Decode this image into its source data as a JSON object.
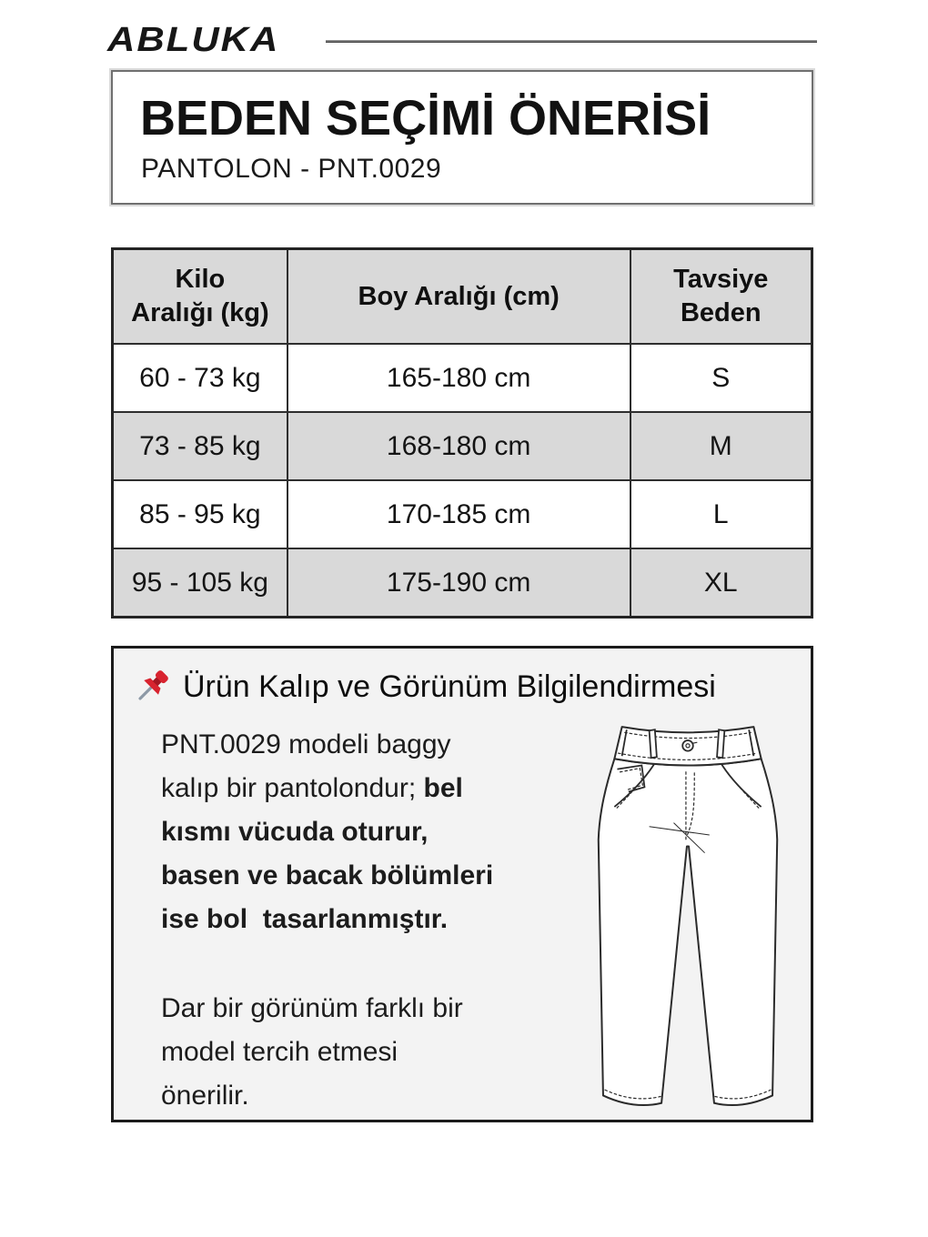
{
  "brand": {
    "logo_text": "ABLUKA"
  },
  "title_box": {
    "title": "BEDEN SEÇİMİ ÖNERİSİ",
    "subtitle": "PANTOLON - PNT.0029"
  },
  "size_table": {
    "headers": [
      {
        "lines": [
          "Kilo",
          "Aralığı (kg)"
        ]
      },
      {
        "lines": [
          "Boy Aralığı (cm)"
        ]
      },
      {
        "lines": [
          "Tavsiye",
          "Beden"
        ]
      }
    ],
    "rows": [
      [
        "60 - 73 kg",
        "165-180 cm",
        "S"
      ],
      [
        "73 - 85 kg",
        "168-180 cm",
        "M"
      ],
      [
        "85 - 95 kg",
        "170-185 cm",
        "L"
      ],
      [
        "95 - 105 kg",
        "175-190 cm",
        "XL"
      ]
    ]
  },
  "info_box": {
    "heading": "Ürün Kalıp ve Görünüm Bilgilendirmesi",
    "pin_icon": "pushpin-icon",
    "pants_drawing": "baggy-pants-technical-flat",
    "paragraph1_lines": [
      {
        "normal": "PNT.0029 modeli baggy",
        "bold": ""
      },
      {
        "normal": "kalıp bir pantolondur; ",
        "bold": "bel"
      },
      {
        "normal": "",
        "bold": "kısmı vücuda oturur,"
      },
      {
        "normal": "",
        "bold": "basen ve bacak bölümleri"
      },
      {
        "normal": "",
        "bold": "ise bol  tasarlanmıştır."
      }
    ],
    "paragraph2_lines": [
      "Dar bir görünüm farklı bir",
      "model tercih etmesi",
      "önerilir."
    ]
  },
  "colors": {
    "pin_red": "#d8232f",
    "pin_red_dark": "#a51622",
    "pin_needle": "#8d99a6",
    "table_header_bg": "#d9d9d9",
    "row_alt_bg": "#d9d9d9",
    "info_box_bg": "#f3f3f3",
    "table_border": "#2e2e2e",
    "line_art": "#2b2b2b"
  }
}
